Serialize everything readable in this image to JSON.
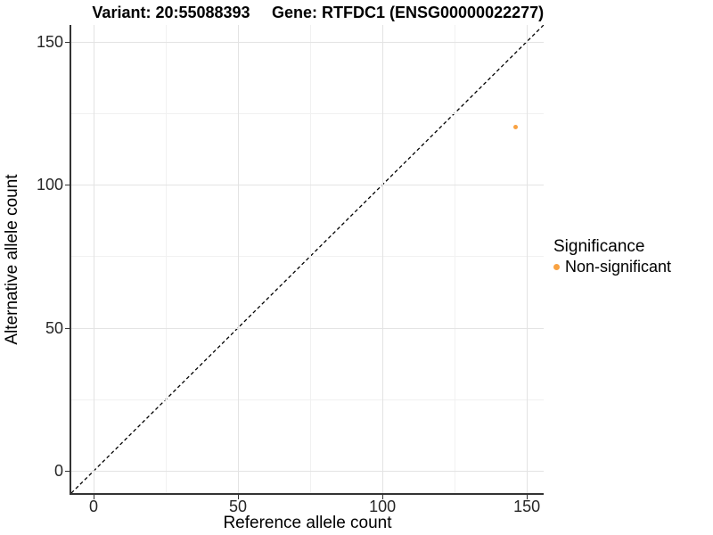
{
  "titles": {
    "variant": "Variant: 20:55088393",
    "gene": "Gene: RTFDC1 (ENSG00000022277)"
  },
  "chart_data": {
    "type": "scatter",
    "title_left": "Variant: 20:55088393",
    "title_right": "Gene: RTFDC1 (ENSG00000022277)",
    "xlabel": "Reference allele count",
    "ylabel": "Alternative allele count",
    "x_ticks": [
      0,
      50,
      100,
      150
    ],
    "y_ticks": [
      0,
      50,
      100,
      150
    ],
    "xlim": [
      -7.7,
      155.8
    ],
    "ylim": [
      -7.7,
      155.8
    ],
    "grid": true,
    "reference_line": {
      "type": "identity y=x",
      "style": "dashed",
      "color": "#000000"
    },
    "series": [
      {
        "name": "Non-significant",
        "color": "#F9A242",
        "points": [
          {
            "x": 146,
            "y": 120
          }
        ]
      }
    ],
    "legend": {
      "position": "right",
      "title": "Significance",
      "items": [
        {
          "label": "Non-significant",
          "color": "#F9A242"
        }
      ]
    }
  },
  "colors": {
    "point_nonsignificant": "#F9A242",
    "axis": "#333333",
    "grid_major": "#e3e3e3",
    "grid_minor": "#f1f1f1"
  }
}
